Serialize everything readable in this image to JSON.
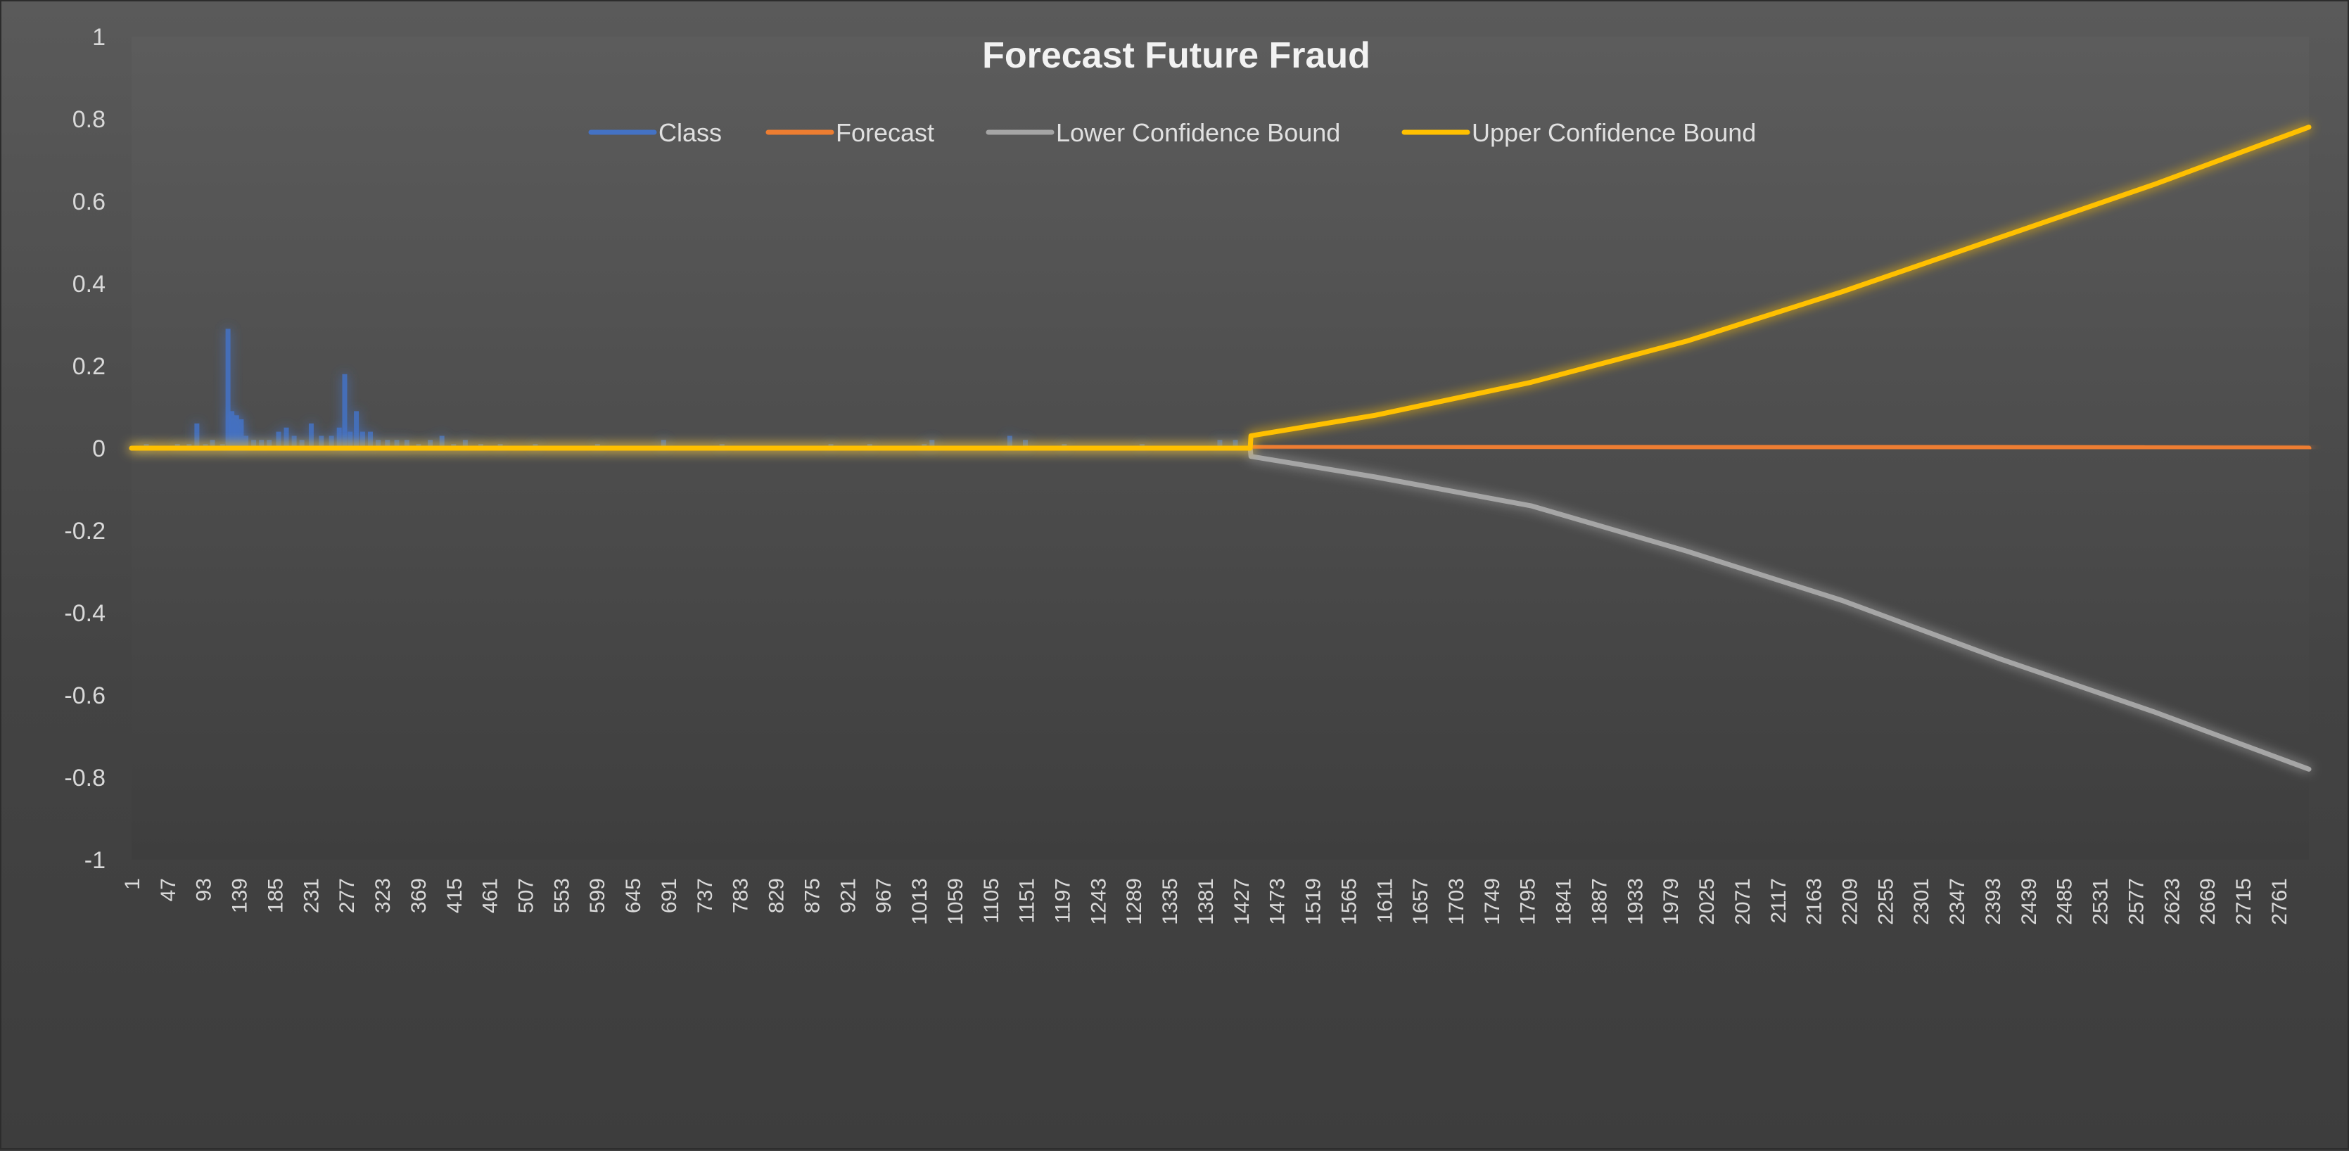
{
  "chart_data": {
    "type": "line",
    "title": "Forecast Future Fraud",
    "xlabel": "",
    "ylabel": "",
    "x_range": [
      1,
      2800
    ],
    "ylim": [
      -1,
      1
    ],
    "y_ticks": [
      1,
      0.8,
      0.6,
      0.4,
      0.2,
      0,
      -0.2,
      -0.4,
      -0.6,
      -0.8,
      -1
    ],
    "x_tick_labels": [
      "1",
      "47",
      "93",
      "139",
      "185",
      "231",
      "277",
      "323",
      "369",
      "415",
      "461",
      "507",
      "553",
      "599",
      "645",
      "691",
      "737",
      "783",
      "829",
      "875",
      "921",
      "967",
      "1013",
      "1059",
      "1105",
      "1151",
      "1197",
      "1243",
      "1289",
      "1335",
      "1381",
      "1427",
      "1473",
      "1519",
      "1565",
      "1611",
      "1657",
      "1703",
      "1749",
      "1795",
      "1841",
      "1887",
      "1933",
      "1979",
      "2025",
      "2071",
      "2117",
      "2163",
      "2209",
      "2255",
      "2301",
      "2347",
      "2393",
      "2439",
      "2485",
      "2531",
      "2577",
      "2623",
      "2669",
      "2715",
      "2761"
    ],
    "legend_placement": "top-center",
    "grid": false,
    "forecast_start": 1440,
    "series": [
      {
        "name": "Class",
        "color": "#4472c4",
        "spikes": [
          {
            "x": 20,
            "y": 0.01
          },
          {
            "x": 60,
            "y": 0.01
          },
          {
            "x": 75,
            "y": 0.01
          },
          {
            "x": 85,
            "y": 0.06
          },
          {
            "x": 96,
            "y": 0.01
          },
          {
            "x": 105,
            "y": 0.02
          },
          {
            "x": 118,
            "y": 0.01
          },
          {
            "x": 125,
            "y": 0.29
          },
          {
            "x": 130,
            "y": 0.09
          },
          {
            "x": 136,
            "y": 0.08
          },
          {
            "x": 142,
            "y": 0.07
          },
          {
            "x": 148,
            "y": 0.03
          },
          {
            "x": 158,
            "y": 0.02
          },
          {
            "x": 168,
            "y": 0.02
          },
          {
            "x": 178,
            "y": 0.02
          },
          {
            "x": 190,
            "y": 0.04
          },
          {
            "x": 200,
            "y": 0.05
          },
          {
            "x": 210,
            "y": 0.03
          },
          {
            "x": 220,
            "y": 0.02
          },
          {
            "x": 232,
            "y": 0.06
          },
          {
            "x": 245,
            "y": 0.03
          },
          {
            "x": 258,
            "y": 0.03
          },
          {
            "x": 268,
            "y": 0.05
          },
          {
            "x": 275,
            "y": 0.18
          },
          {
            "x": 282,
            "y": 0.04
          },
          {
            "x": 290,
            "y": 0.09
          },
          {
            "x": 298,
            "y": 0.04
          },
          {
            "x": 308,
            "y": 0.04
          },
          {
            "x": 318,
            "y": 0.02
          },
          {
            "x": 330,
            "y": 0.02
          },
          {
            "x": 342,
            "y": 0.02
          },
          {
            "x": 355,
            "y": 0.02
          },
          {
            "x": 370,
            "y": 0.01
          },
          {
            "x": 385,
            "y": 0.02
          },
          {
            "x": 400,
            "y": 0.03
          },
          {
            "x": 415,
            "y": 0.01
          },
          {
            "x": 430,
            "y": 0.02
          },
          {
            "x": 450,
            "y": 0.01
          },
          {
            "x": 475,
            "y": 0.01
          },
          {
            "x": 520,
            "y": 0.01
          },
          {
            "x": 600,
            "y": 0.01
          },
          {
            "x": 685,
            "y": 0.02
          },
          {
            "x": 760,
            "y": 0.01
          },
          {
            "x": 900,
            "y": 0.01
          },
          {
            "x": 950,
            "y": 0.01
          },
          {
            "x": 1020,
            "y": 0.01
          },
          {
            "x": 1030,
            "y": 0.02
          },
          {
            "x": 1130,
            "y": 0.03
          },
          {
            "x": 1150,
            "y": 0.02
          },
          {
            "x": 1200,
            "y": 0.01
          },
          {
            "x": 1300,
            "y": 0.01
          },
          {
            "x": 1400,
            "y": 0.02
          },
          {
            "x": 1420,
            "y": 0.02
          }
        ]
      },
      {
        "name": "Forecast",
        "color": "#ed7d31",
        "points": [
          [
            1440,
            0.005
          ],
          [
            1900,
            0.004
          ],
          [
            2300,
            0.002
          ],
          [
            2800,
            0.0
          ]
        ]
      },
      {
        "name": "Lower Confidence Bound",
        "color": "#a5a5a5",
        "points": [
          [
            1,
            0
          ],
          [
            1439,
            0
          ],
          [
            1440,
            -0.02
          ],
          [
            1600,
            -0.07
          ],
          [
            1800,
            -0.14
          ],
          [
            2000,
            -0.25
          ],
          [
            2200,
            -0.37
          ],
          [
            2400,
            -0.51
          ],
          [
            2600,
            -0.64
          ],
          [
            2800,
            -0.78
          ]
        ]
      },
      {
        "name": "Upper Confidence Bound",
        "color": "#ffc000",
        "points": [
          [
            1,
            0
          ],
          [
            1439,
            0
          ],
          [
            1440,
            0.03
          ],
          [
            1600,
            0.08
          ],
          [
            1800,
            0.16
          ],
          [
            2000,
            0.26
          ],
          [
            2200,
            0.38
          ],
          [
            2400,
            0.51
          ],
          [
            2600,
            0.64
          ],
          [
            2800,
            0.78
          ]
        ]
      }
    ]
  }
}
